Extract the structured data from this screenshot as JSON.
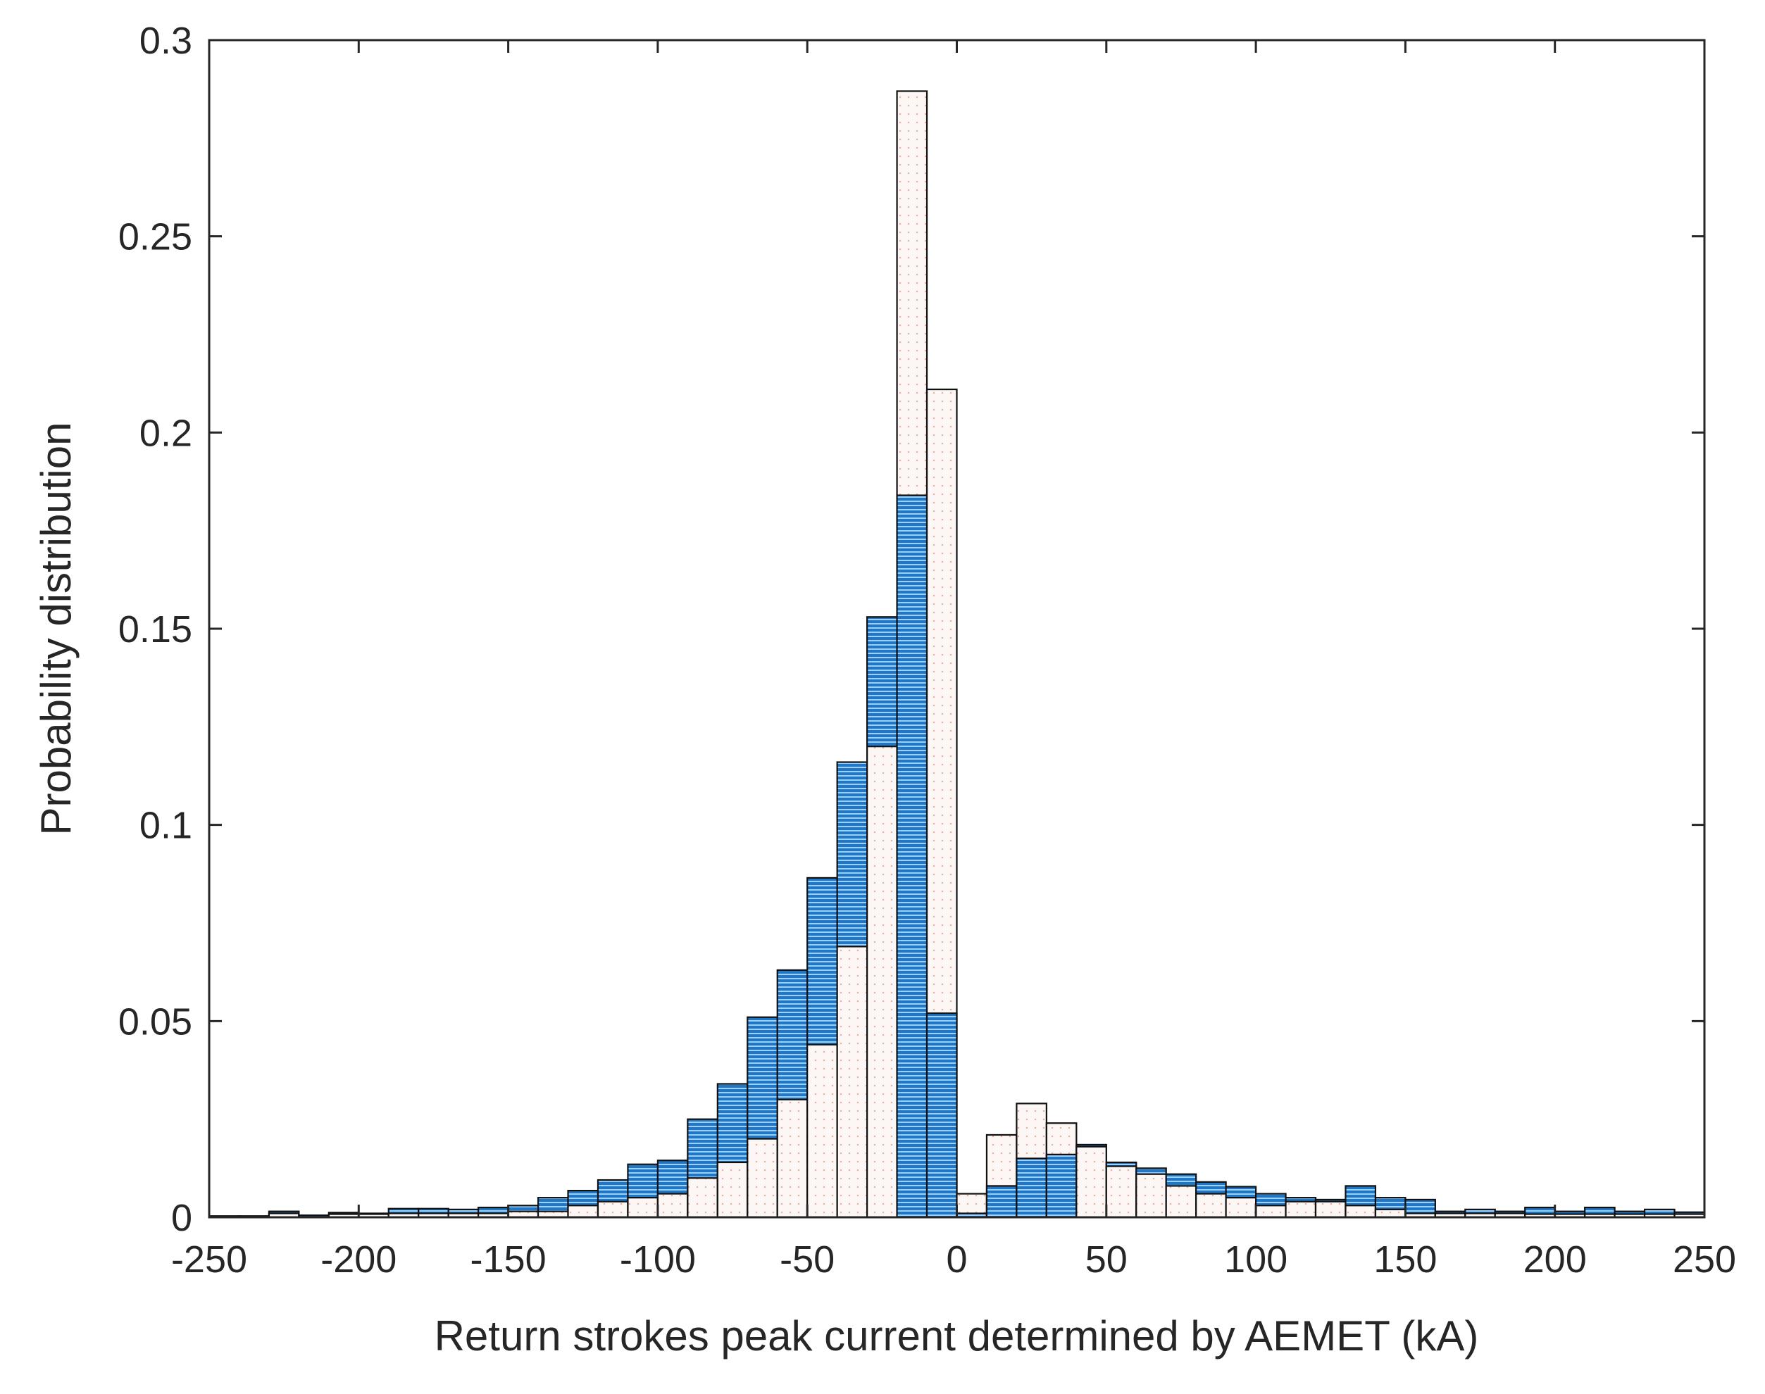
{
  "chart_data": {
    "type": "bar",
    "title": "",
    "xlabel": "Return strokes peak current determined by AEMET (kA)",
    "ylabel": "Probability distribution",
    "xlim": [
      -250,
      250
    ],
    "ylim": [
      0,
      0.3
    ],
    "xticks": [
      -250,
      -200,
      -150,
      -100,
      -50,
      0,
      50,
      100,
      150,
      200,
      250
    ],
    "xtick_labels": [
      "-250",
      "-200",
      "-150",
      "-100",
      "-50",
      "0",
      "50",
      "100",
      "150",
      "200",
      "250"
    ],
    "yticks": [
      0,
      0.05,
      0.1,
      0.15,
      0.2,
      0.25,
      0.3
    ],
    "ytick_labels": [
      "0",
      "0.05",
      "0.1",
      "0.15",
      "0.2",
      "0.25",
      "0.3"
    ],
    "grid": false,
    "bin_width": 10,
    "bin_starts": [
      -250,
      -240,
      -230,
      -220,
      -210,
      -200,
      -190,
      -180,
      -170,
      -160,
      -150,
      -140,
      -130,
      -120,
      -110,
      -100,
      -90,
      -80,
      -70,
      -60,
      -50,
      -40,
      -30,
      -20,
      -10,
      0,
      10,
      20,
      30,
      40,
      50,
      60,
      70,
      80,
      90,
      100,
      110,
      120,
      130,
      140,
      150,
      160,
      170,
      180,
      190,
      200,
      210,
      220,
      230,
      240
    ],
    "series": [
      {
        "fill": "#f8f0ee",
        "pattern": "dotted",
        "values": [
          0.0003,
          0.0003,
          0.001,
          0.0005,
          0.0008,
          0.0008,
          0.001,
          0.001,
          0.001,
          0.001,
          0.0015,
          0.0015,
          0.003,
          0.004,
          0.005,
          0.006,
          0.01,
          0.014,
          0.02,
          0.03,
          0.044,
          0.069,
          0.12,
          0.287,
          0.211,
          0.006,
          0.021,
          0.029,
          0.024,
          0.018,
          0.013,
          0.011,
          0.008,
          0.006,
          0.005,
          0.003,
          0.004,
          0.004,
          0.003,
          0.002,
          0.001,
          0.001,
          0.001,
          0.001,
          0.0008,
          0.0008,
          0.0008,
          0.0008,
          0.0008,
          0.0008
        ]
      },
      {
        "fill": "#1f77c8",
        "pattern": "horizontal-lines",
        "values": [
          0.0003,
          0.0003,
          0.0015,
          0.0005,
          0.0012,
          0.001,
          0.0022,
          0.0022,
          0.002,
          0.0025,
          0.003,
          0.005,
          0.0068,
          0.0095,
          0.0135,
          0.0145,
          0.025,
          0.034,
          0.051,
          0.063,
          0.0865,
          0.116,
          0.153,
          0.184,
          0.052,
          0.001,
          0.008,
          0.015,
          0.016,
          0.0185,
          0.014,
          0.0125,
          0.011,
          0.009,
          0.0078,
          0.006,
          0.005,
          0.0045,
          0.008,
          0.005,
          0.0045,
          0.0015,
          0.002,
          0.0015,
          0.0025,
          0.0015,
          0.0025,
          0.0015,
          0.002,
          0.0013
        ]
      }
    ]
  }
}
